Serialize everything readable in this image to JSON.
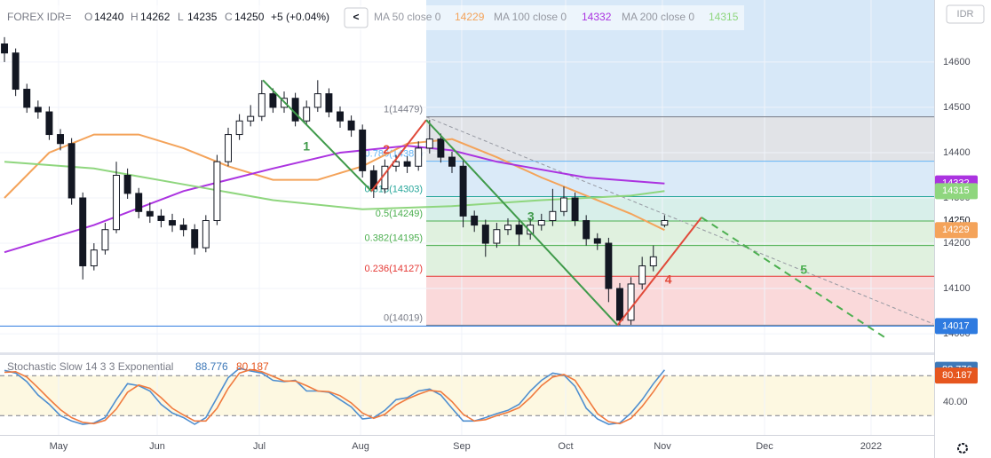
{
  "header": {
    "symbol": "FOREX IDR=",
    "ohlc": [
      {
        "label": "O",
        "value": 14240
      },
      {
        "label": "H",
        "value": 14262
      },
      {
        "label": "L",
        "value": 14235
      },
      {
        "label": "C",
        "value": 14250
      }
    ],
    "change": "+5 (+0.04%)",
    "back_button": "<",
    "currency": "IDR"
  },
  "chart_data": [
    {
      "type": "candlestick",
      "up_color": "#ffffff",
      "down_color": "#131722",
      "candles": [
        [
          14640,
          14655,
          14600,
          14620
        ],
        [
          14620,
          14630,
          14525,
          14540
        ],
        [
          14540,
          14552,
          14488,
          14500
        ],
        [
          14500,
          14515,
          14475,
          14490
        ],
        [
          14490,
          14502,
          14428,
          14440
        ],
        [
          14440,
          14452,
          14405,
          14420
        ],
        [
          14420,
          14432,
          14285,
          14300
        ],
        [
          14300,
          14312,
          14120,
          14150
        ],
        [
          14150,
          14200,
          14140,
          14185
        ],
        [
          14185,
          14245,
          14175,
          14230
        ],
        [
          14230,
          14380,
          14222,
          14350
        ],
        [
          14350,
          14365,
          14298,
          14310
        ],
        [
          14310,
          14322,
          14255,
          14270
        ],
        [
          14270,
          14290,
          14245,
          14260
        ],
        [
          14260,
          14275,
          14235,
          14250
        ],
        [
          14250,
          14265,
          14225,
          14240
        ],
        [
          14240,
          14255,
          14215,
          14230
        ],
        [
          14230,
          14242,
          14175,
          14190
        ],
        [
          14190,
          14262,
          14180,
          14250
        ],
        [
          14250,
          14395,
          14240,
          14380
        ],
        [
          14380,
          14455,
          14370,
          14440
        ],
        [
          14440,
          14485,
          14428,
          14470
        ],
        [
          14470,
          14505,
          14458,
          14480
        ],
        [
          14480,
          14560,
          14470,
          14530
        ],
        [
          14530,
          14542,
          14488,
          14500
        ],
        [
          14500,
          14535,
          14488,
          14520
        ],
        [
          14520,
          14532,
          14458,
          14470
        ],
        [
          14470,
          14515,
          14460,
          14500
        ],
        [
          14500,
          14560,
          14490,
          14530
        ],
        [
          14530,
          14542,
          14478,
          14490
        ],
        [
          14490,
          14502,
          14455,
          14470
        ],
        [
          14470,
          14482,
          14435,
          14450
        ],
        [
          14450,
          14462,
          14345,
          14360
        ],
        [
          14360,
          14372,
          14300,
          14320
        ],
        [
          14320,
          14385,
          14310,
          14370
        ],
        [
          14370,
          14395,
          14358,
          14380
        ],
        [
          14380,
          14392,
          14355,
          14370
        ],
        [
          14370,
          14425,
          14360,
          14410
        ],
        [
          14410,
          14472,
          14398,
          14430
        ],
        [
          14430,
          14442,
          14378,
          14390
        ],
        [
          14390,
          14402,
          14355,
          14370
        ],
        [
          14370,
          14382,
          14235,
          14260
        ],
        [
          14260,
          14272,
          14225,
          14240
        ],
        [
          14240,
          14252,
          14170,
          14200
        ],
        [
          14200,
          14245,
          14190,
          14230
        ],
        [
          14230,
          14255,
          14218,
          14240
        ],
        [
          14240,
          14252,
          14195,
          14220
        ],
        [
          14220,
          14255,
          14208,
          14240
        ],
        [
          14240,
          14265,
          14228,
          14250
        ],
        [
          14250,
          14320,
          14238,
          14270
        ],
        [
          14270,
          14325,
          14260,
          14300
        ],
        [
          14300,
          14312,
          14238,
          14250
        ],
        [
          14250,
          14262,
          14195,
          14210
        ],
        [
          14210,
          14222,
          14185,
          14200
        ],
        [
          14200,
          14212,
          14070,
          14100
        ],
        [
          14100,
          14112,
          14019,
          14030
        ],
        [
          14030,
          14125,
          14020,
          14110
        ],
        [
          14110,
          14170,
          14098,
          14150
        ],
        [
          14150,
          14195,
          14138,
          14170
        ],
        [
          14240,
          14262,
          14235,
          14250
        ]
      ],
      "series": [
        {
          "name": "MA 50 close 0",
          "color": "#f4a35a",
          "x": [
            0,
            4,
            8,
            12,
            16,
            20,
            24,
            28,
            32,
            36,
            40,
            44,
            48,
            52,
            56,
            59
          ],
          "values": [
            14300,
            14400,
            14440,
            14440,
            14410,
            14370,
            14340,
            14340,
            14370,
            14420,
            14430,
            14390,
            14345,
            14305,
            14265,
            14229
          ]
        },
        {
          "name": "MA 100 close 0",
          "color": "#ab33e0",
          "x": [
            0,
            8,
            16,
            24,
            30,
            36,
            40,
            44,
            52,
            59
          ],
          "values": [
            14180,
            14240,
            14315,
            14365,
            14400,
            14415,
            14405,
            14380,
            14345,
            14332
          ]
        },
        {
          "name": "MA 200 close 0",
          "color": "#8fd67e",
          "x": [
            0,
            8,
            16,
            24,
            32,
            40,
            48,
            56,
            59
          ],
          "values": [
            14380,
            14365,
            14330,
            14295,
            14275,
            14282,
            14295,
            14305,
            14315
          ]
        }
      ],
      "fib": {
        "start_x": 37.7,
        "above_fill": "#d7e8f8",
        "levels": [
          {
            "label": "1(14479)",
            "price": 14479,
            "color": "#787b86",
            "fill": "#e1e3e7"
          },
          {
            "label": "0.786(14381)",
            "price": 14381,
            "color": "#64b5f6",
            "fill": "#daeaf8"
          },
          {
            "label": "0.618(14303)",
            "price": 14303,
            "color": "#26a69a",
            "fill": "#d8efea"
          },
          {
            "label": "0.5(14249)",
            "price": 14249,
            "color": "#4caf50",
            "fill": "#e0f1df"
          },
          {
            "label": "0.382(14195)",
            "price": 14195,
            "color": "#4caf50",
            "fill": "#e0f1df"
          },
          {
            "label": "0.236(14127)",
            "price": 14127,
            "color": "#e53935",
            "fill": "#fad9da"
          },
          {
            "label": "0(14019)",
            "price": 14019,
            "color": "#787b86"
          }
        ]
      },
      "waves": [
        {
          "label": "1",
          "color": "#3f9a4a",
          "x": [
            23.1,
            32.8
          ],
          "y": [
            14560,
            14315
          ]
        },
        {
          "label": "2",
          "color": "#e04a3a",
          "x": [
            32.8,
            37.7
          ],
          "y": [
            14315,
            14472
          ]
        },
        {
          "label": "3",
          "color": "#3f9a4a",
          "x": [
            37.7,
            54.8
          ],
          "y": [
            14472,
            14019
          ]
        },
        {
          "label": "4",
          "color": "#e04a3a",
          "x": [
            54.8,
            62.3
          ],
          "y": [
            14019,
            14257
          ]
        },
        {
          "label": "5",
          "color": "#4caf50",
          "x": [
            62.3,
            79.0
          ],
          "y": [
            14257,
            13987
          ],
          "dashed": true
        }
      ],
      "trendline": {
        "color": "#9598a1",
        "x": [
          37.7,
          83.0
        ],
        "y": [
          14479,
          14022
        ]
      },
      "hline": {
        "value": 14017,
        "color": "#2f7be0"
      },
      "xlim": [
        -0.4,
        83.1
      ],
      "ylim": [
        13959,
        14737
      ],
      "yticks": [
        14000,
        14100,
        14200,
        14300,
        14400,
        14500,
        14600
      ],
      "xticks": [
        {
          "value": 4.84,
          "label": "May"
        },
        {
          "value": 13.65,
          "label": "Jun"
        },
        {
          "value": 22.78,
          "label": "Jul"
        },
        {
          "value": 31.83,
          "label": "Aug"
        },
        {
          "value": 40.87,
          "label": "Sep"
        },
        {
          "value": 50.16,
          "label": "Oct"
        },
        {
          "value": 58.81,
          "label": "Nov"
        },
        {
          "value": 67.94,
          "label": "Dec"
        },
        {
          "value": 77.46,
          "label": "2022"
        }
      ],
      "grid": true
    },
    {
      "type": "line",
      "title": "Stochastic Slow 14 3 3 Exponential",
      "series": [
        {
          "color": "#4f8fd0",
          "values": [
            88,
            84,
            71,
            51,
            37,
            20,
            12,
            7,
            9,
            17,
            44,
            68,
            65,
            57,
            37,
            24,
            17,
            7,
            17,
            47,
            77,
            91,
            87,
            84,
            73,
            71,
            73,
            57,
            57,
            55,
            44,
            33,
            15,
            17,
            28,
            44,
            47,
            57,
            60,
            51,
            31,
            12,
            12,
            17,
            23,
            28,
            37,
            57,
            73,
            84,
            81,
            64,
            31,
            15,
            7,
            9,
            24,
            44,
            68,
            88.776
          ]
        },
        {
          "color": "#f07b3f",
          "values": [
            85,
            86,
            78,
            62,
            45,
            29,
            17,
            10,
            8,
            13,
            30,
            55,
            66,
            61,
            47,
            31,
            21,
            12,
            12,
            31,
            61,
            84,
            89,
            86,
            79,
            72,
            72,
            65,
            57,
            56,
            50,
            39,
            24,
            16,
            22,
            36,
            45,
            52,
            58,
            56,
            41,
            22,
            12,
            14,
            20,
            25,
            32,
            47,
            65,
            78,
            82,
            73,
            48,
            23,
            11,
            8,
            16,
            34,
            56,
            80.187
          ]
        }
      ],
      "badge_colors": [
        "#3d78b8",
        "#e6561e"
      ],
      "bands": [
        20,
        80
      ],
      "band_fill": "#fdf8e1",
      "ylim": [
        -9,
        111
      ],
      "yticks": [
        {
          "value": 40,
          "label": "40.00"
        }
      ]
    }
  ]
}
